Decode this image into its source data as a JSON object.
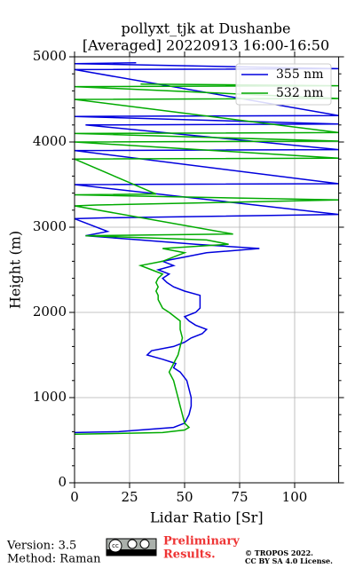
{
  "chart_data": {
    "type": "line",
    "title": [
      "pollyxt_tjk at Dushanbe",
      "[Averaged] 20220913 16:00-16:50"
    ],
    "xlabel": "Lidar Ratio [Sr]",
    "ylabel": "Height (m)",
    "xlim": [
      0,
      120
    ],
    "ylim": [
      0,
      5000
    ],
    "xticks": [
      0,
      25,
      50,
      75,
      100
    ],
    "yticks": [
      0,
      1000,
      2000,
      3000,
      4000,
      5000
    ],
    "yticks_minor": [
      200,
      400,
      600,
      800,
      1200,
      1400,
      1600,
      1800,
      2200,
      2400,
      2600,
      2800,
      3200,
      3400,
      3600,
      3800,
      4200,
      4400,
      4600,
      4800
    ],
    "grid": true,
    "legend": "upper right",
    "series": [
      {
        "name": "355 nm",
        "color": "#0000dd",
        "heights": [
          590,
          600,
          650,
          700,
          800,
          900,
          1000,
          1100,
          1200,
          1300,
          1350,
          1400,
          1450,
          1500,
          1550,
          1600,
          1650,
          1700,
          1750,
          1800,
          1850,
          1900,
          1950,
          2000,
          2050,
          2100,
          2150,
          2200,
          2250,
          2300,
          2350,
          2400,
          2450,
          2500,
          2550,
          2600,
          2650,
          2700,
          2750,
          2800,
          2850,
          2900,
          2950,
          3100,
          3110,
          3150,
          3500,
          3510,
          3900,
          3910,
          4200,
          4210,
          4300,
          4310,
          4850,
          4860,
          4920,
          4930
        ],
        "values": [
          0,
          20,
          45,
          50,
          52,
          53,
          53,
          52,
          51,
          48,
          45,
          46,
          40,
          33,
          35,
          45,
          50,
          53,
          58,
          60,
          55,
          52,
          50,
          55,
          57,
          57,
          57,
          57,
          50,
          45,
          42,
          40,
          43,
          38,
          45,
          40,
          50,
          60,
          84,
          55,
          30,
          5,
          15,
          0,
          15,
          120,
          0,
          120,
          0,
          120,
          5,
          120,
          0,
          120,
          0,
          120,
          0,
          28
        ]
      },
      {
        "name": "532 nm",
        "color": "#00aa00",
        "heights": [
          570,
          590,
          620,
          650,
          700,
          800,
          900,
          1000,
          1100,
          1200,
          1300,
          1400,
          1500,
          1600,
          1700,
          1800,
          1900,
          2000,
          2050,
          2100,
          2150,
          2200,
          2250,
          2300,
          2350,
          2400,
          2450,
          2500,
          2550,
          2600,
          2650,
          2700,
          2750,
          2800,
          2850,
          2900,
          2920,
          3250,
          3260,
          3320,
          3380,
          3390,
          3800,
          3810,
          4000,
          4010,
          4100,
          4110,
          4500,
          4510,
          4650,
          4660,
          4680
        ],
        "values": [
          0,
          40,
          50,
          52,
          50,
          49,
          48,
          47,
          46,
          45,
          43,
          45,
          47,
          48,
          49,
          48,
          48,
          43,
          40,
          39,
          38,
          38,
          37,
          38,
          37,
          38,
          40,
          35,
          30,
          40,
          45,
          50,
          40,
          70,
          60,
          5,
          72,
          0,
          10,
          120,
          0,
          37,
          0,
          120,
          0,
          120,
          0,
          120,
          0,
          120,
          0,
          120,
          30
        ]
      }
    ],
    "footer": {
      "version": "Version: 3.5",
      "method": "Method: Raman",
      "preliminary": [
        "Preliminary",
        "Results."
      ],
      "copyright": [
        "© TROPOS 2022.",
        "CC BY SA 4.0 License."
      ]
    }
  }
}
